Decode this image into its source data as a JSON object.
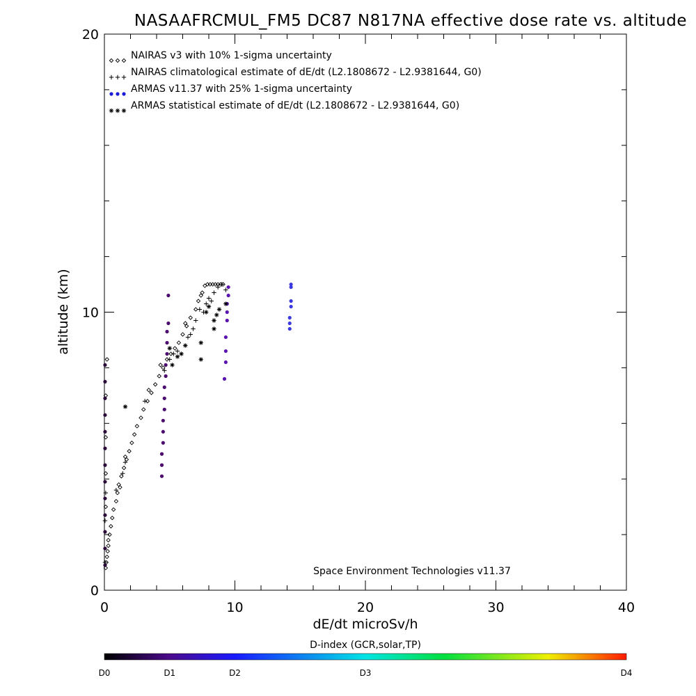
{
  "chart_data": {
    "type": "scatter",
    "title": "NASAAFRCMUL_FM5 DC87 N817NA effective dose rate vs. altitude",
    "xlabel": "dE/dt microSv/h",
    "ylabel": "altitude (km)",
    "xlim": [
      0,
      40
    ],
    "ylim": [
      0,
      20
    ],
    "x_ticks": [
      0,
      10,
      20,
      30,
      40
    ],
    "y_ticks": [
      0,
      10,
      20
    ],
    "x_tick_labels": [
      "0",
      "10",
      "20",
      "30",
      "40"
    ],
    "y_tick_labels": [
      "0",
      "10",
      "20"
    ],
    "grid": false,
    "legend_position": "top-left",
    "footer_note": "Space Environment Technologies v11.37",
    "colorbar": {
      "title": "D-index (GCR,solar,TP)",
      "labels": [
        "D0",
        "D1",
        "D2",
        "D3",
        "D4"
      ],
      "positions": [
        0,
        0.125,
        0.25,
        0.5,
        1.0
      ]
    },
    "series": [
      {
        "name": "NAIRAS v3 with 10% 1-sigma uncertainty",
        "marker": "diamond",
        "color": "#000000",
        "points": [
          [
            0.1,
            0.8
          ],
          [
            0.15,
            1.0
          ],
          [
            0.2,
            1.2
          ],
          [
            0.25,
            1.4
          ],
          [
            0.3,
            1.6
          ],
          [
            0.3,
            1.8
          ],
          [
            0.4,
            2.0
          ],
          [
            0.5,
            2.3
          ],
          [
            0.6,
            2.6
          ],
          [
            0.7,
            2.9
          ],
          [
            0.9,
            3.2
          ],
          [
            1.0,
            3.5
          ],
          [
            1.1,
            3.8
          ],
          [
            1.3,
            4.1
          ],
          [
            1.5,
            4.4
          ],
          [
            1.7,
            4.7
          ],
          [
            1.9,
            5.0
          ],
          [
            2.1,
            5.3
          ],
          [
            2.3,
            5.6
          ],
          [
            2.5,
            5.9
          ],
          [
            2.8,
            6.2
          ],
          [
            3.0,
            6.5
          ],
          [
            3.3,
            6.8
          ],
          [
            3.6,
            7.1
          ],
          [
            3.9,
            7.4
          ],
          [
            4.2,
            7.7
          ],
          [
            4.5,
            8.0
          ],
          [
            4.8,
            8.3
          ],
          [
            5.1,
            8.5
          ],
          [
            5.4,
            8.7
          ],
          [
            5.7,
            8.9
          ],
          [
            6.0,
            9.2
          ],
          [
            6.3,
            9.5
          ],
          [
            6.6,
            9.8
          ],
          [
            7.0,
            10.1
          ],
          [
            7.2,
            10.4
          ],
          [
            7.5,
            10.7
          ],
          [
            7.7,
            10.95
          ],
          [
            7.9,
            11.0
          ],
          [
            8.1,
            11.0
          ],
          [
            8.3,
            11.0
          ],
          [
            8.5,
            11.0
          ],
          [
            8.7,
            11.0
          ],
          [
            8.9,
            11.0
          ],
          [
            9.1,
            11.0
          ],
          [
            0.2,
            8.3
          ],
          [
            0.1,
            7.0
          ],
          [
            0.1,
            5.5
          ],
          [
            0.1,
            4.2
          ],
          [
            0.1,
            3.0
          ],
          [
            1.2,
            3.7
          ],
          [
            1.6,
            4.8
          ],
          [
            3.4,
            7.2
          ],
          [
            4.3,
            8.1
          ],
          [
            6.2,
            9.6
          ],
          [
            7.4,
            10.6
          ]
        ]
      },
      {
        "name": "NAIRAS climatological estimate of dE/dt (L2.1808672 - L2.9381644, G0)",
        "marker": "plus",
        "color": "#000000",
        "points": [
          [
            0.05,
            1.0
          ],
          [
            0.05,
            2.5
          ],
          [
            0.1,
            3.5
          ],
          [
            0.9,
            3.6
          ],
          [
            1.4,
            4.2
          ],
          [
            1.6,
            4.6
          ],
          [
            3.1,
            6.8
          ],
          [
            4.6,
            7.9
          ],
          [
            5.0,
            8.3
          ],
          [
            5.3,
            8.5
          ],
          [
            5.6,
            8.6
          ],
          [
            6.4,
            9.1
          ],
          [
            6.8,
            9.4
          ],
          [
            7.0,
            9.7
          ],
          [
            7.6,
            10.0
          ],
          [
            7.8,
            10.3
          ],
          [
            8.0,
            10.5
          ],
          [
            8.2,
            10.4
          ],
          [
            8.4,
            10.7
          ],
          [
            8.7,
            10.9
          ],
          [
            9.0,
            11.0
          ],
          [
            9.3,
            10.8
          ],
          [
            6.6,
            9.2
          ],
          [
            7.3,
            10.1
          ]
        ]
      },
      {
        "name": "ARMAS v11.37 with 25% 1-sigma uncertainty",
        "marker": "dot",
        "color": "#2b2bd9",
        "points": [
          [
            0.05,
            0.9
          ],
          [
            0.05,
            1.5
          ],
          [
            0.05,
            2.1
          ],
          [
            0.05,
            2.7
          ],
          [
            0.05,
            3.3
          ],
          [
            0.05,
            3.9
          ],
          [
            0.05,
            4.5
          ],
          [
            0.05,
            5.1
          ],
          [
            0.05,
            5.7
          ],
          [
            0.05,
            6.3
          ],
          [
            0.05,
            6.9
          ],
          [
            0.05,
            7.5
          ],
          [
            0.05,
            8.1
          ],
          [
            4.4,
            4.1
          ],
          [
            4.4,
            4.5
          ],
          [
            4.4,
            4.9
          ],
          [
            4.5,
            5.3
          ],
          [
            4.5,
            5.7
          ],
          [
            4.5,
            6.1
          ],
          [
            4.6,
            6.5
          ],
          [
            4.6,
            6.9
          ],
          [
            4.6,
            7.3
          ],
          [
            4.7,
            7.7
          ],
          [
            4.7,
            8.1
          ],
          [
            4.8,
            8.5
          ],
          [
            4.8,
            8.9
          ],
          [
            4.8,
            9.3
          ],
          [
            4.9,
            9.6
          ],
          [
            4.9,
            10.6
          ],
          [
            9.2,
            7.6
          ],
          [
            9.3,
            8.2
          ],
          [
            9.3,
            8.6
          ],
          [
            9.3,
            9.1
          ],
          [
            9.4,
            9.7
          ],
          [
            9.4,
            10.0
          ],
          [
            9.4,
            10.3
          ],
          [
            9.5,
            10.6
          ],
          [
            9.5,
            10.9
          ],
          [
            14.2,
            9.4
          ],
          [
            14.2,
            9.6
          ],
          [
            14.2,
            9.8
          ],
          [
            14.3,
            10.2
          ],
          [
            14.3,
            10.4
          ],
          [
            14.3,
            10.9
          ],
          [
            14.3,
            11.0
          ]
        ]
      },
      {
        "name": "ARMAS statistical estimate of dE/dt (L2.1808672 - L2.9381644, G0)",
        "marker": "asterisk",
        "color": "#000000",
        "points": [
          [
            1.6,
            6.6
          ],
          [
            5.2,
            8.1
          ],
          [
            5.6,
            8.4
          ],
          [
            5.0,
            8.7
          ],
          [
            5.9,
            8.5
          ],
          [
            6.2,
            8.8
          ],
          [
            7.4,
            8.3
          ],
          [
            7.4,
            8.9
          ],
          [
            7.8,
            10.0
          ],
          [
            8.0,
            10.2
          ],
          [
            8.4,
            9.4
          ],
          [
            8.4,
            9.7
          ],
          [
            8.6,
            9.9
          ],
          [
            8.8,
            10.1
          ],
          [
            9.3,
            10.3
          ]
        ]
      }
    ]
  }
}
